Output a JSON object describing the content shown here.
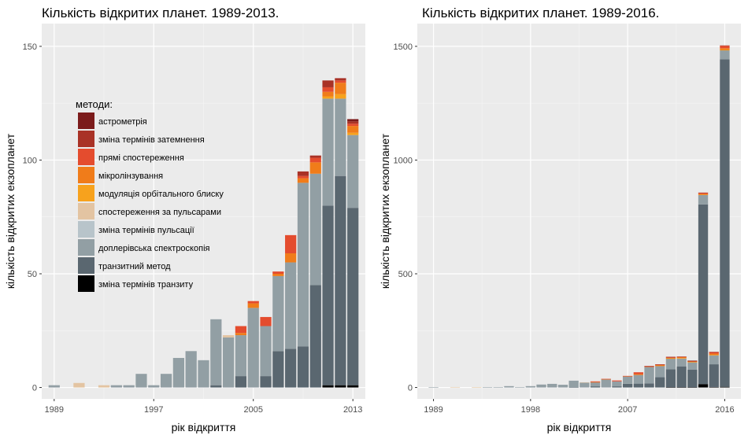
{
  "chart_data": [
    {
      "type": "bar",
      "stacked": true,
      "title": "Кількість відкритих планет. 1989-2013.",
      "xlabel": "рік відкриття",
      "ylabel": "кількість відкритих екзопланет",
      "xlim": [
        1988,
        2014
      ],
      "ylim": [
        -5,
        160
      ],
      "x_ticks": [
        1989,
        1997,
        2005,
        2013
      ],
      "y_ticks": [
        0,
        50,
        100,
        150
      ],
      "grid": true,
      "legend_position": "inside-top-left",
      "legend_title": "методи:",
      "categories": [
        1989,
        1990,
        1991,
        1992,
        1993,
        1994,
        1995,
        1996,
        1997,
        1998,
        1999,
        2000,
        2001,
        2002,
        2003,
        2004,
        2005,
        2006,
        2007,
        2008,
        2009,
        2010,
        2011,
        2012,
        2013
      ],
      "series": [
        {
          "name": "зміна термінів транзиту",
          "color": "#000000",
          "values": [
            0,
            0,
            0,
            0,
            0,
            0,
            0,
            0,
            0,
            0,
            0,
            0,
            0,
            0,
            0,
            0,
            0,
            0,
            0,
            0,
            0,
            0,
            1,
            1,
            1
          ]
        },
        {
          "name": "транзитний метод",
          "color": "#5A6770",
          "values": [
            0,
            0,
            0,
            0,
            0,
            0,
            0,
            0,
            0,
            0,
            0,
            0,
            0,
            1,
            0,
            5,
            0,
            5,
            16,
            17,
            18,
            45,
            79,
            92,
            78
          ]
        },
        {
          "name": "доплерівська спектроскопія",
          "color": "#929FA4",
          "values": [
            1,
            0,
            0,
            0,
            0,
            1,
            1,
            6,
            1,
            6,
            13,
            16,
            12,
            29,
            22,
            18,
            35,
            22,
            33,
            38,
            72,
            49,
            47,
            34,
            32
          ]
        },
        {
          "name": "зміна термінів пульсації",
          "color": "#B8C4CA",
          "values": [
            0,
            0,
            0,
            0,
            0,
            0,
            0,
            0,
            0,
            0,
            0,
            0,
            0,
            0,
            0,
            0,
            0,
            0,
            0,
            0,
            0,
            0,
            0,
            0,
            0
          ]
        },
        {
          "name": "спостереження за пульсарами",
          "color": "#E3C4A2",
          "values": [
            0,
            0,
            2,
            0,
            1,
            0,
            0,
            0,
            0,
            0,
            0,
            0,
            0,
            0,
            1,
            0,
            0,
            0,
            0,
            0,
            0,
            0,
            0,
            0,
            0
          ]
        },
        {
          "name": "модуляція орбітального блиску",
          "color": "#F7A21D",
          "values": [
            0,
            0,
            0,
            0,
            0,
            0,
            0,
            0,
            0,
            0,
            0,
            0,
            0,
            0,
            0,
            0,
            0,
            0,
            0,
            0,
            0,
            0,
            1,
            2,
            1
          ]
        },
        {
          "name": "мікролінзування",
          "color": "#F07C1A",
          "values": [
            0,
            0,
            0,
            0,
            0,
            0,
            0,
            0,
            0,
            0,
            0,
            0,
            0,
            0,
            0,
            1,
            2,
            0,
            1,
            4,
            2,
            5,
            2,
            5,
            3
          ]
        },
        {
          "name": "прямі спостереження",
          "color": "#E44C2E",
          "values": [
            0,
            0,
            0,
            0,
            0,
            0,
            0,
            0,
            0,
            0,
            0,
            0,
            0,
            0,
            0,
            3,
            1,
            4,
            1,
            8,
            1,
            2,
            2,
            1,
            1
          ]
        },
        {
          "name": "зміна термінів затемнення",
          "color": "#A93226",
          "values": [
            0,
            0,
            0,
            0,
            0,
            0,
            0,
            0,
            0,
            0,
            0,
            0,
            0,
            0,
            0,
            0,
            0,
            0,
            0,
            0,
            2,
            1,
            3,
            1,
            1
          ]
        },
        {
          "name": "астрометрія",
          "color": "#7B1B1B",
          "values": [
            0,
            0,
            0,
            0,
            0,
            0,
            0,
            0,
            0,
            0,
            0,
            0,
            0,
            0,
            0,
            0,
            0,
            0,
            0,
            0,
            0,
            0,
            0,
            0,
            1
          ]
        }
      ]
    },
    {
      "type": "bar",
      "stacked": true,
      "title": "Кількість відкритих планет. 1989-2016.",
      "xlabel": "рік відкриття",
      "ylabel": "кількість відкритих екзопланет",
      "xlim": [
        1987.5,
        2017.5
      ],
      "ylim": [
        -50,
        1600
      ],
      "x_ticks": [
        1989,
        1998,
        2007,
        2016
      ],
      "y_ticks": [
        0,
        500,
        1000,
        1500
      ],
      "grid": true,
      "legend_position": "none",
      "categories": [
        1989,
        1990,
        1991,
        1992,
        1993,
        1994,
        1995,
        1996,
        1997,
        1998,
        1999,
        2000,
        2001,
        2002,
        2003,
        2004,
        2005,
        2006,
        2007,
        2008,
        2009,
        2010,
        2011,
        2012,
        2013,
        2014,
        2015,
        2016
      ],
      "series": [
        {
          "name": "зміна термінів транзиту",
          "color": "#000000",
          "values": [
            0,
            0,
            0,
            0,
            0,
            0,
            0,
            0,
            0,
            0,
            0,
            0,
            0,
            0,
            0,
            0,
            0,
            0,
            0,
            0,
            0,
            0,
            1,
            1,
            1,
            15,
            2,
            3
          ]
        },
        {
          "name": "транзитний метод",
          "color": "#5A6770",
          "values": [
            0,
            0,
            0,
            0,
            0,
            0,
            0,
            0,
            0,
            0,
            0,
            0,
            0,
            1,
            0,
            5,
            0,
            5,
            16,
            17,
            18,
            45,
            79,
            92,
            78,
            790,
            100,
            1440
          ]
        },
        {
          "name": "доплерівська спектроскопія",
          "color": "#929FA4",
          "values": [
            1,
            0,
            0,
            0,
            0,
            1,
            1,
            6,
            1,
            6,
            13,
            16,
            12,
            29,
            22,
            18,
            35,
            22,
            33,
            38,
            72,
            49,
            47,
            34,
            32,
            42,
            40,
            40
          ]
        },
        {
          "name": "зміна термінів пульсації",
          "color": "#B8C4CA",
          "values": [
            0,
            0,
            0,
            0,
            0,
            0,
            0,
            0,
            0,
            0,
            0,
            0,
            0,
            0,
            0,
            0,
            0,
            0,
            0,
            0,
            0,
            0,
            0,
            0,
            0,
            0,
            0,
            0
          ]
        },
        {
          "name": "спостереження за пульсарами",
          "color": "#E3C4A2",
          "values": [
            0,
            0,
            2,
            0,
            1,
            0,
            0,
            0,
            0,
            0,
            0,
            0,
            0,
            0,
            1,
            0,
            0,
            0,
            0,
            0,
            0,
            0,
            0,
            0,
            0,
            0,
            0,
            0
          ]
        },
        {
          "name": "модуляція орбітального блиску",
          "color": "#F7A21D",
          "values": [
            0,
            0,
            0,
            0,
            0,
            0,
            0,
            0,
            0,
            0,
            0,
            0,
            0,
            0,
            0,
            0,
            0,
            0,
            0,
            0,
            0,
            0,
            1,
            2,
            1,
            1,
            1,
            1
          ]
        },
        {
          "name": "мікролінзування",
          "color": "#F07C1A",
          "values": [
            0,
            0,
            0,
            0,
            0,
            0,
            0,
            0,
            0,
            0,
            0,
            0,
            0,
            0,
            0,
            1,
            2,
            0,
            1,
            4,
            2,
            5,
            2,
            5,
            3,
            3,
            6,
            8
          ]
        },
        {
          "name": "прямі спостереження",
          "color": "#E44C2E",
          "values": [
            0,
            0,
            0,
            0,
            0,
            0,
            0,
            0,
            0,
            0,
            0,
            0,
            0,
            0,
            0,
            3,
            1,
            4,
            1,
            8,
            1,
            2,
            2,
            1,
            1,
            4,
            6,
            10
          ]
        },
        {
          "name": "зміна термінів затемнення",
          "color": "#A93226",
          "values": [
            0,
            0,
            0,
            0,
            0,
            0,
            0,
            0,
            0,
            0,
            0,
            0,
            0,
            0,
            0,
            0,
            0,
            0,
            0,
            0,
            2,
            1,
            3,
            1,
            1,
            2,
            2,
            2
          ]
        },
        {
          "name": "астрометрія",
          "color": "#7B1B1B",
          "values": [
            0,
            0,
            0,
            0,
            0,
            0,
            0,
            0,
            0,
            0,
            0,
            0,
            0,
            0,
            0,
            0,
            0,
            0,
            0,
            0,
            0,
            0,
            0,
            0,
            1,
            0,
            0,
            0
          ]
        }
      ]
    }
  ]
}
